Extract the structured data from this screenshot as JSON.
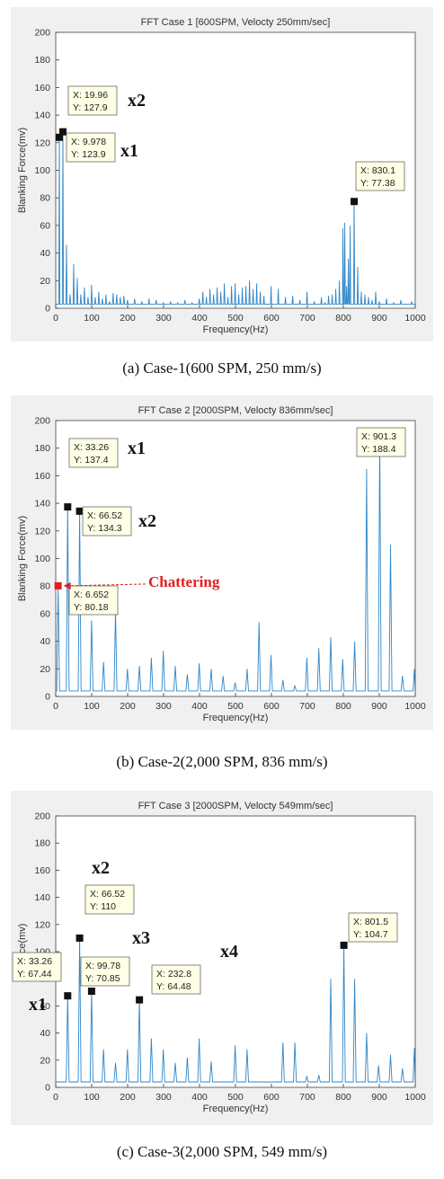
{
  "chart_data": [
    {
      "type": "line",
      "title": "FFT Case 1 [600SPM, Velocty 250mm/sec]",
      "xlabel": "Frequency(Hz)",
      "ylabel": "Blanking Force(mv)",
      "xlim": [
        0,
        1000
      ],
      "ylim": [
        0,
        200
      ],
      "xticks": [
        "0",
        "100",
        "200",
        "300",
        "400",
        "500",
        "600",
        "700",
        "800",
        "900",
        "1000"
      ],
      "yticks": [
        "0",
        "20",
        "40",
        "60",
        "80",
        "100",
        "120",
        "140",
        "160",
        "180",
        "200"
      ],
      "caption": "(a) Case-1(600 SPM, 250 mm/s)",
      "series": [
        {
          "color": "#2f86c8",
          "baseline": 3,
          "x": [
            9.978,
            19.96,
            29.94,
            39.92,
            49.9,
            59.88,
            69.86,
            79.84,
            89.82,
            99.8,
            109.8,
            119.8,
            129.7,
            139.7,
            149.7,
            159.7,
            169.7,
            179.6,
            189.6,
            199.6,
            219.6,
            239.5,
            259.5,
            279.4,
            299.4,
            319.3,
            339.3,
            359.3,
            379.2,
            399.2,
            409.2,
            419.2,
            429.1,
            439.1,
            449.1,
            459.1,
            469.1,
            479,
            489,
            499,
            509,
            519,
            529,
            539,
            549,
            559,
            569,
            579,
            599,
            619,
            639,
            659,
            679,
            699,
            719,
            739,
            749,
            759,
            769,
            779,
            789,
            799,
            804,
            809,
            814,
            819,
            830.1,
            840,
            850,
            860,
            870,
            880,
            890,
            900,
            920,
            940,
            960,
            980,
            990
          ],
          "y": [
            123.9,
            127.9,
            46,
            10,
            32,
            22,
            10,
            15,
            8,
            17,
            8,
            12,
            7,
            10,
            5,
            11,
            10,
            8,
            9,
            6,
            7,
            5,
            7,
            6,
            4,
            5,
            4,
            6,
            4,
            7,
            12,
            8,
            14,
            10,
            15,
            12,
            18,
            8,
            16,
            18,
            10,
            15,
            16,
            20,
            14,
            18,
            12,
            9,
            16,
            14,
            8,
            9,
            6,
            12,
            5,
            8,
            4,
            9,
            10,
            14,
            20,
            58,
            62,
            16,
            36,
            60,
            77.38,
            30,
            12,
            10,
            8,
            6,
            12,
            5,
            7,
            4,
            6,
            3,
            5
          ]
        }
      ],
      "annotations": [
        {
          "x": 19.96,
          "y": 127.9,
          "lines": [
            "X: 19.96",
            "Y: 127.9"
          ],
          "multiplier": "x2"
        },
        {
          "x": 9.978,
          "y": 123.9,
          "lines": [
            "X: 9.978",
            "Y: 123.9"
          ],
          "multiplier": "x1"
        },
        {
          "x": 830.1,
          "y": 77.38,
          "lines": [
            "X: 830.1",
            "Y: 77.38"
          ]
        }
      ]
    },
    {
      "type": "line",
      "title": "FFT Case 2 [2000SPM, Velocty 836mm/sec]",
      "xlabel": "Frequency(Hz)",
      "ylabel": "Blanking Force(mv)",
      "xlim": [
        0,
        1000
      ],
      "ylim": [
        0,
        200
      ],
      "xticks": [
        "0",
        "100",
        "200",
        "300",
        "400",
        "500",
        "600",
        "700",
        "800",
        "900",
        "1000"
      ],
      "yticks": [
        "0",
        "20",
        "40",
        "60",
        "80",
        "100",
        "120",
        "140",
        "160",
        "180",
        "200"
      ],
      "caption": "(b) Case-2(2,000 SPM, 836 mm/s)",
      "chattering_label": "Chattering",
      "series": [
        {
          "color": "#2f86c8",
          "baseline": 4,
          "x": [
            6.652,
            33.26,
            66.52,
            99.78,
            133,
            166.3,
            199.6,
            232.8,
            266.1,
            299.3,
            332.6,
            365.9,
            399.1,
            432.4,
            465.6,
            498.9,
            532.2,
            565.4,
            598.7,
            631.9,
            665.2,
            698.4,
            731.7,
            765,
            798.2,
            831.5,
            864.7,
            901.3,
            931.3,
            964.5,
            997.8
          ],
          "y": [
            80.18,
            137.4,
            134.3,
            55,
            25,
            62,
            20,
            22,
            28,
            33,
            22,
            16,
            24,
            20,
            15,
            10,
            20,
            54,
            30,
            12,
            8,
            28,
            35,
            43,
            27,
            40,
            165,
            188.4,
            110,
            15,
            20
          ]
        }
      ],
      "annotations": [
        {
          "x": 33.26,
          "y": 137.4,
          "lines": [
            "X: 33.26",
            "Y: 137.4"
          ],
          "multiplier": "x1"
        },
        {
          "x": 66.52,
          "y": 134.3,
          "lines": [
            "X: 66.52",
            "Y: 134.3"
          ],
          "multiplier": "x2"
        },
        {
          "x": 6.652,
          "y": 80.18,
          "lines": [
            "X: 6.652",
            "Y: 80.18"
          ],
          "highlight": true
        },
        {
          "x": 901.3,
          "y": 188.4,
          "lines": [
            "X: 901.3",
            "Y: 188.4"
          ]
        }
      ]
    },
    {
      "type": "line",
      "title": "FFT Case 3 [2000SPM, Velocty 549mm/sec]",
      "xlabel": "Frequency(Hz)",
      "ylabel": "Bl Force(mv)",
      "xlim": [
        0,
        1000
      ],
      "ylim": [
        0,
        200
      ],
      "xticks": [
        "0",
        "100",
        "200",
        "300",
        "400",
        "500",
        "600",
        "700",
        "800",
        "900",
        "1000"
      ],
      "yticks": [
        "0",
        "20",
        "40",
        "60",
        "80",
        "100",
        "120",
        "140",
        "160",
        "180",
        "200"
      ],
      "caption": "(c) Case-3(2,000 SPM, 549 mm/s)",
      "series": [
        {
          "color": "#2f86c8",
          "baseline": 4,
          "x": [
            33.26,
            66.52,
            99.78,
            133,
            166.3,
            199.6,
            232.8,
            266.1,
            299.3,
            332.6,
            365.9,
            399.1,
            432.4,
            498.9,
            532.2,
            631.9,
            665.2,
            698.4,
            731.7,
            765,
            801.5,
            831.5,
            864.7,
            898,
            931.3,
            964.5,
            997.8
          ],
          "y": [
            67.44,
            110,
            70.85,
            28,
            18,
            28,
            64.48,
            36,
            28,
            18,
            22,
            36,
            19,
            31,
            28,
            33,
            33,
            8,
            9,
            80,
            104.7,
            80,
            40,
            16,
            24,
            14,
            29
          ]
        }
      ],
      "annotations": [
        {
          "x": 33.26,
          "y": 67.44,
          "lines": [
            "X: 33.26",
            "Y: 67.44"
          ],
          "multiplier": "x1"
        },
        {
          "x": 66.52,
          "y": 110,
          "lines": [
            "X: 66.52",
            "Y: 110"
          ],
          "multiplier": "x2"
        },
        {
          "x": 99.78,
          "y": 70.85,
          "lines": [
            "X: 99.78",
            "Y: 70.85"
          ],
          "multiplier": "x3"
        },
        {
          "x": 232.8,
          "y": 64.48,
          "lines": [
            "X: 232.8",
            "Y: 64.48"
          ],
          "multiplier": "x4"
        },
        {
          "x": 801.5,
          "y": 104.7,
          "lines": [
            "X: 801.5",
            "Y: 104.7"
          ]
        }
      ]
    }
  ]
}
